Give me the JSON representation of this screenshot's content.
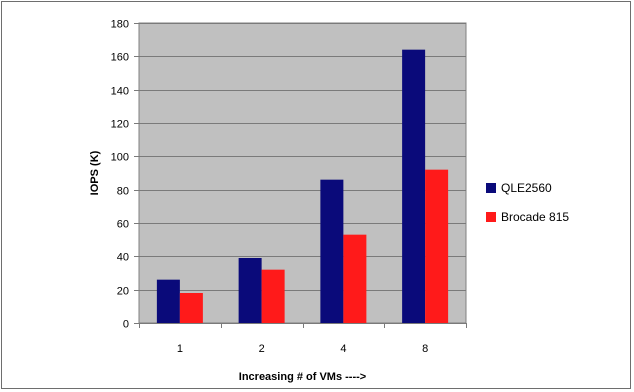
{
  "chart_data": {
    "type": "bar",
    "title": "",
    "categories": [
      "1",
      "2",
      "4",
      "8"
    ],
    "series": [
      {
        "name": "QLE2560",
        "values": [
          26,
          39,
          86,
          164
        ],
        "color": "#0a0a7a"
      },
      {
        "name": "Brocade 815",
        "values": [
          18,
          32,
          53,
          92
        ],
        "color": "#ff1a1a"
      }
    ],
    "xlabel": "Increasing # of VMs ---->",
    "ylabel": "IOPS (K)",
    "ylim": [
      0,
      180
    ],
    "yticks": [
      "0",
      "20",
      "40",
      "60",
      "80",
      "100",
      "120",
      "140",
      "160",
      "180"
    ],
    "grid": true,
    "plot_background": "#c0c0c0",
    "legend_position": "right"
  }
}
